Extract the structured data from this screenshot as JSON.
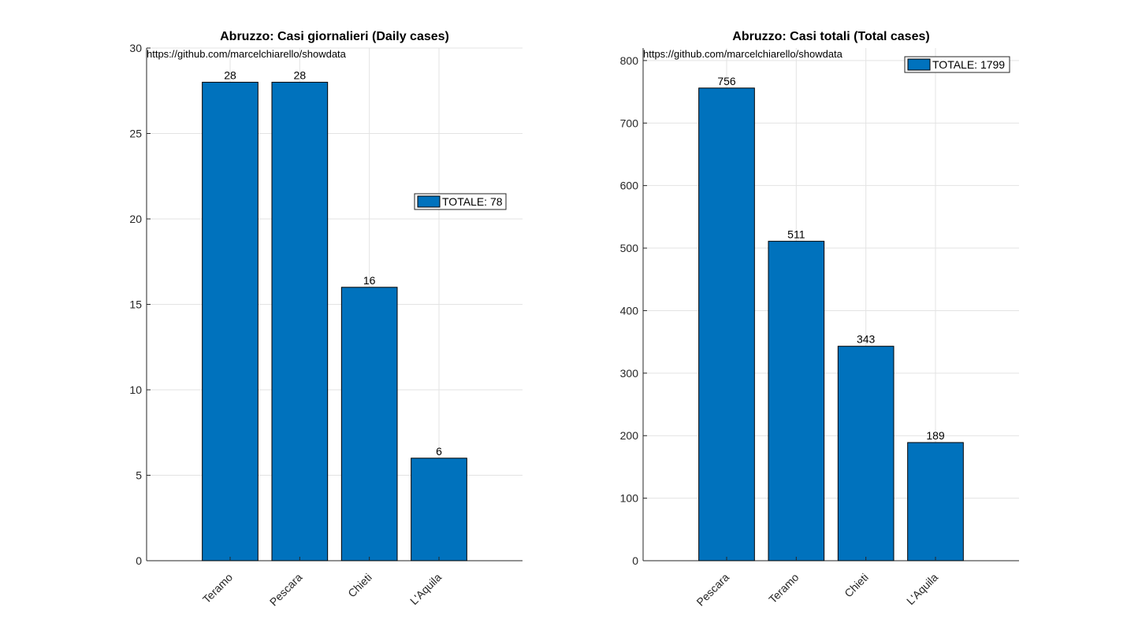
{
  "chart_data": [
    {
      "type": "bar",
      "title": "Abruzzo: Casi giornalieri (Daily cases)",
      "source": "https://github.com/marcelchiarello/showdata",
      "categories": [
        "Teramo",
        "Pescara",
        "Chieti",
        "L'Aquila"
      ],
      "values": [
        28,
        28,
        16,
        6
      ],
      "data_labels": [
        "28",
        "28",
        "16",
        "6"
      ],
      "ylim": [
        0,
        30
      ],
      "yticks": [
        0,
        5,
        10,
        15,
        20,
        25,
        30
      ],
      "legend": {
        "label": "TOTALE: 78",
        "placement": "right"
      },
      "grid": true,
      "bar_color": "#0072BD",
      "xlabel": "",
      "ylabel": ""
    },
    {
      "type": "bar",
      "title": "Abruzzo: Casi totali (Total cases)",
      "source": "https://github.com/marcelchiarello/showdata",
      "categories": [
        "Pescara",
        "Teramo",
        "Chieti",
        "L'Aquila"
      ],
      "values": [
        756,
        511,
        343,
        189
      ],
      "data_labels": [
        "756",
        "511",
        "343",
        "189"
      ],
      "ylim": [
        0,
        820
      ],
      "yticks": [
        0,
        100,
        200,
        300,
        400,
        500,
        600,
        700,
        800
      ],
      "legend": {
        "label": "TOTALE: 1799",
        "placement": "top-right"
      },
      "grid": true,
      "bar_color": "#0072BD",
      "xlabel": "",
      "ylabel": ""
    }
  ]
}
